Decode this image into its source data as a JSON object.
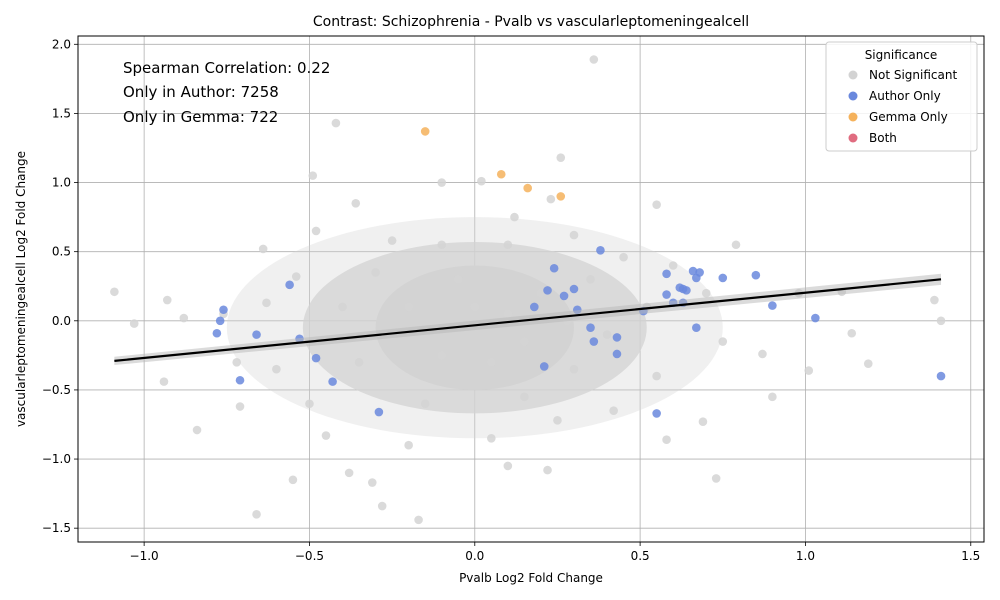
{
  "chart_data": {
    "type": "scatter",
    "title": "Contrast: Schizophrenia - Pvalb vs vascularleptomeningealcell",
    "xlabel": "Pvalb Log2 Fold Change",
    "ylabel": "vascularleptomeningealcell Log2 Fold Change",
    "xlim": [
      -1.2,
      1.54
    ],
    "ylim": [
      -1.6,
      2.06
    ],
    "xticks": [
      -1.0,
      -0.5,
      0.0,
      0.5,
      1.0,
      1.5
    ],
    "xtick_labels": [
      "−1.0",
      "−0.5",
      "0.0",
      "0.5",
      "1.0",
      "1.5"
    ],
    "yticks": [
      -1.5,
      -1.0,
      -0.5,
      0.0,
      0.5,
      1.0,
      1.5,
      2.0
    ],
    "ytick_labels": [
      "−1.5",
      "−1.0",
      "−0.5",
      "0.0",
      "0.5",
      "1.0",
      "1.5",
      "2.0"
    ],
    "grid": true,
    "legend": {
      "title": "Significance",
      "placement": "top-right",
      "entries": [
        "Not Significant",
        "Author Only",
        "Gemma Only",
        "Both"
      ]
    },
    "annotations": [
      "Spearman Correlation: 0.22",
      "Only in Author: 7258",
      "Only in Gemma: 722"
    ],
    "regression_line": {
      "x": [
        -1.09,
        1.41
      ],
      "y": [
        -0.29,
        0.3
      ]
    },
    "series": [
      {
        "name": "Not Significant",
        "color": "#d3d3d3",
        "points": [
          [
            -1.09,
            0.21
          ],
          [
            -1.03,
            -0.02
          ],
          [
            -0.93,
            0.15
          ],
          [
            -0.94,
            -0.44
          ],
          [
            -0.88,
            0.02
          ],
          [
            -0.84,
            -0.79
          ],
          [
            -0.71,
            -0.62
          ],
          [
            -0.66,
            -1.4
          ],
          [
            -0.64,
            0.52
          ],
          [
            -0.55,
            -1.15
          ],
          [
            -0.42,
            1.43
          ],
          [
            -0.49,
            1.05
          ],
          [
            -0.1,
            1.0
          ],
          [
            0.02,
            1.01
          ],
          [
            0.36,
            1.89
          ],
          [
            0.26,
            1.18
          ],
          [
            0.23,
            0.88
          ],
          [
            -0.28,
            -1.34
          ],
          [
            -0.31,
            -1.17
          ],
          [
            -0.17,
            -1.44
          ],
          [
            0.1,
            -1.05
          ],
          [
            0.22,
            -1.08
          ],
          [
            -0.38,
            -1.1
          ],
          [
            0.55,
            0.84
          ],
          [
            0.79,
            0.55
          ],
          [
            0.98,
            0.2
          ],
          [
            1.11,
            0.21
          ],
          [
            1.14,
            -0.09
          ],
          [
            1.19,
            -0.31
          ],
          [
            1.39,
            0.15
          ],
          [
            1.41,
            0.0
          ],
          [
            1.01,
            -0.36
          ],
          [
            0.73,
            -1.14
          ],
          [
            0.87,
            -0.24
          ],
          [
            0.9,
            -0.55
          ],
          [
            0.58,
            -0.86
          ],
          [
            0.69,
            -0.73
          ],
          [
            -0.54,
            0.32
          ],
          [
            -0.48,
            0.65
          ],
          [
            -0.36,
            0.85
          ],
          [
            0.12,
            0.75
          ],
          [
            -0.25,
            0.58
          ],
          [
            0.3,
            0.62
          ],
          [
            0.45,
            0.46
          ],
          [
            -0.6,
            -0.35
          ],
          [
            -0.63,
            0.13
          ],
          [
            -0.72,
            -0.3
          ],
          [
            -0.76,
            0.05
          ],
          [
            -0.5,
            -0.6
          ],
          [
            -0.45,
            -0.83
          ],
          [
            -0.2,
            -0.9
          ],
          [
            0.05,
            -0.85
          ],
          [
            0.25,
            -0.72
          ],
          [
            0.42,
            -0.65
          ],
          [
            0.55,
            -0.4
          ],
          [
            0.6,
            0.4
          ],
          [
            0.7,
            0.2
          ],
          [
            0.75,
            -0.15
          ],
          [
            0.52,
            0.1
          ],
          [
            0.35,
            0.3
          ],
          [
            0.1,
            0.55
          ],
          [
            -0.1,
            0.55
          ],
          [
            -0.3,
            0.35
          ],
          [
            -0.4,
            0.1
          ],
          [
            -0.35,
            -0.3
          ],
          [
            -0.15,
            -0.6
          ],
          [
            0.15,
            -0.55
          ],
          [
            0.3,
            -0.35
          ],
          [
            0.4,
            -0.1
          ],
          [
            0.2,
            0.2
          ],
          [
            -0.05,
            0.3
          ],
          [
            -0.2,
            0.1
          ],
          [
            -0.1,
            -0.25
          ],
          [
            0.05,
            -0.3
          ],
          [
            0.1,
            0.05
          ],
          [
            -0.25,
            -0.1
          ],
          [
            0.28,
            0.0
          ],
          [
            0.0,
            0.1
          ],
          [
            -0.12,
            -0.05
          ],
          [
            0.15,
            -0.15
          ]
        ]
      },
      {
        "name": "Author Only",
        "color": "#6a88dd",
        "points": [
          [
            -0.78,
            -0.09
          ],
          [
            -0.77,
            0.0
          ],
          [
            -0.76,
            0.08
          ],
          [
            -0.71,
            -0.43
          ],
          [
            -0.66,
            -0.1
          ],
          [
            -0.56,
            0.26
          ],
          [
            -0.53,
            -0.13
          ],
          [
            -0.48,
            -0.27
          ],
          [
            -0.43,
            -0.44
          ],
          [
            -0.29,
            -0.66
          ],
          [
            0.24,
            0.38
          ],
          [
            0.3,
            0.23
          ],
          [
            0.38,
            0.51
          ],
          [
            0.36,
            -0.15
          ],
          [
            0.43,
            -0.24
          ],
          [
            0.43,
            -0.12
          ],
          [
            0.51,
            0.07
          ],
          [
            0.55,
            -0.67
          ],
          [
            0.58,
            0.34
          ],
          [
            0.58,
            0.19
          ],
          [
            0.6,
            0.13
          ],
          [
            0.62,
            0.24
          ],
          [
            0.63,
            0.23
          ],
          [
            0.64,
            0.22
          ],
          [
            0.63,
            0.13
          ],
          [
            0.66,
            0.36
          ],
          [
            0.67,
            0.31
          ],
          [
            0.68,
            0.35
          ],
          [
            0.67,
            -0.05
          ],
          [
            0.75,
            0.31
          ],
          [
            0.85,
            0.33
          ],
          [
            0.9,
            0.11
          ],
          [
            1.03,
            0.02
          ],
          [
            1.41,
            -0.4
          ],
          [
            0.22,
            0.22
          ],
          [
            0.27,
            0.18
          ],
          [
            0.31,
            0.08
          ],
          [
            0.35,
            -0.05
          ],
          [
            0.18,
            0.1
          ],
          [
            0.21,
            -0.33
          ]
        ]
      },
      {
        "name": "Gemma Only",
        "color": "#f5b25c",
        "points": [
          [
            -0.15,
            1.37
          ],
          [
            0.08,
            1.06
          ],
          [
            0.16,
            0.96
          ],
          [
            0.26,
            0.9
          ]
        ]
      },
      {
        "name": "Both",
        "color": "#e06c80",
        "points": []
      }
    ]
  }
}
